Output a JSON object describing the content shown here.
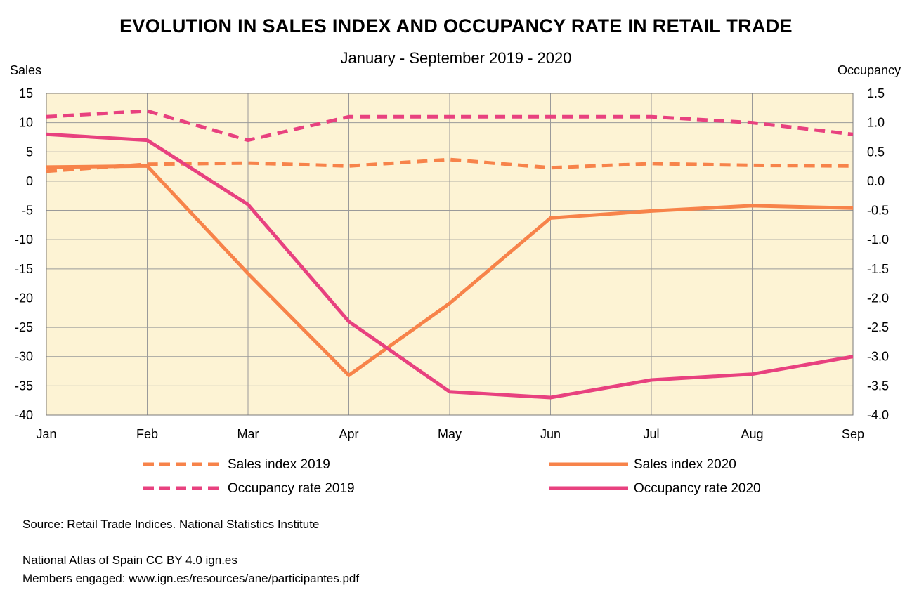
{
  "chart_data": {
    "type": "line",
    "title": "EVOLUTION IN SALES INDEX AND OCCUPANCY RATE IN RETAIL TRADE",
    "subtitle": "January - September 2019 - 2020",
    "categories": [
      "Jan",
      "Feb",
      "Mar",
      "Apr",
      "May",
      "Jun",
      "Jul",
      "Aug",
      "Sep"
    ],
    "y_left": {
      "label": "Sales",
      "range": [
        -40,
        15
      ],
      "ticks": [
        15,
        10,
        5,
        0,
        -5,
        -10,
        -15,
        -20,
        -25,
        -30,
        -35,
        -40
      ]
    },
    "y_right": {
      "label": "Occupancy",
      "range": [
        -4.0,
        1.5
      ],
      "ticks": [
        "1.5",
        "1.0",
        "0.5",
        "0.0",
        "-0.5",
        "-1.0",
        "-1.5",
        "-2.0",
        "-2.5",
        "-3.0",
        "-3.5",
        "-4.0"
      ]
    },
    "grid": true,
    "plot_background": "#fdf3d4",
    "series": [
      {
        "name": "Sales index 2019",
        "axis": "left",
        "color": "#f7834a",
        "style": "dashed",
        "values": [
          1.7,
          2.9,
          3.1,
          2.6,
          3.7,
          2.3,
          3.0,
          2.7,
          2.6
        ]
      },
      {
        "name": "Sales index 2020",
        "axis": "left",
        "color": "#f7834a",
        "style": "solid",
        "values": [
          2.4,
          2.6,
          -15.8,
          -33.2,
          -20.9,
          -6.3,
          -5.1,
          -4.2,
          -4.6
        ]
      },
      {
        "name": "Occupancy rate 2019",
        "axis": "right",
        "color": "#e8417f",
        "style": "dashed",
        "values": [
          1.1,
          1.2,
          0.7,
          1.1,
          1.1,
          1.1,
          1.1,
          1.0,
          0.8
        ]
      },
      {
        "name": "Occupancy rate 2020",
        "axis": "right",
        "color": "#e8417f",
        "style": "solid",
        "values": [
          0.8,
          0.7,
          -0.4,
          -2.4,
          -3.6,
          -3.7,
          -3.4,
          -3.3,
          -3.0
        ]
      }
    ]
  },
  "notes": {
    "source": "Source: Retail Trade Indices. National Statistics Institute",
    "atlas": "National Atlas of Spain CC BY 4.0 ign.es",
    "members": "Members engaged: www.ign.es/resources/ane/participantes.pdf"
  }
}
